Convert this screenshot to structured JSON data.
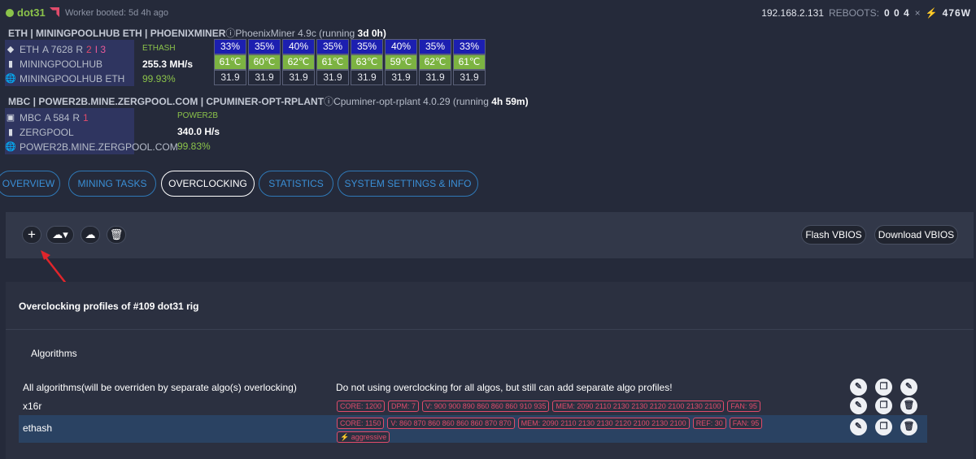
{
  "header": {
    "rig_name": "dot31",
    "booted": "Worker booted: 5d 4h ago",
    "ip": "192.168.2.131",
    "reboots_label": "REBOOTS:",
    "reboots_value": "0 0 4",
    "separator": "×",
    "power_icon": "⚡",
    "power": "476W"
  },
  "miners": [
    {
      "title": "ETH | MININGPOOLHUB ETH | PHOENIXMINER",
      "software": "PhoenixMiner",
      "version": "4.9c",
      "running_label": "(running",
      "uptime": "3d 0h)",
      "coin": "ETH",
      "accepted": "A 7628",
      "rejected_label": "R",
      "rejected": "2",
      "invalid": "I 3",
      "pool": "MININGPOOLHUB",
      "server": "MININGPOOLHUB ETH",
      "algo": "ETHASH",
      "hashrate": "255.3 MH/s",
      "share": "99.93%"
    },
    {
      "title": "MBC | POWER2B.MINE.ZERGPOOL.COM | CPUMINER-OPT-RPLANT",
      "software": "Cpuminer-opt-rplant",
      "version": "4.0.29",
      "running_label": "(running",
      "uptime": "4h 59m)",
      "coin": "MBC",
      "accepted": "A 584",
      "rejected_label": "R",
      "rejected": "1",
      "pool": "ZERGPOOL",
      "server": "POWER2B.MINE.ZERGPOOL.COM",
      "algo": "POWER2B",
      "hashrate": "340.0 H/s",
      "share": "99.83%"
    }
  ],
  "gpus": {
    "fans": [
      "33%",
      "35%",
      "40%",
      "35%",
      "35%",
      "40%",
      "35%",
      "33%"
    ],
    "temps": [
      "61℃",
      "60℃",
      "62℃",
      "61℃",
      "63℃",
      "59℃",
      "62℃",
      "61℃"
    ],
    "power": [
      "31.9",
      "31.9",
      "31.9",
      "31.9",
      "31.9",
      "31.9",
      "31.9",
      "31.9"
    ]
  },
  "tabs": [
    "OVERVIEW",
    "MINING TASKS",
    "OVERCLOCKING",
    "STATISTICS",
    "SYSTEM SETTINGS & INFO"
  ],
  "active_tab": "OVERCLOCKING",
  "toolbar": {
    "flash_label": "Flash VBIOS",
    "download_label": "Download VBIOS"
  },
  "profiles": {
    "title": "Overclocking profiles of #109 dot31 rig",
    "section": "Algorithms",
    "rows": [
      {
        "name": "All algorithms(will be overriden by separate algo(s) overlocking)",
        "desc": "Do not using overclocking for all algos, but still can add separate algo profiles!",
        "tags": []
      },
      {
        "name": "x16r",
        "desc": "",
        "tags": [
          "CORE: 1200",
          "DPM: 7",
          "V: 900 900 890 860 860 860 910 935",
          "MEM: 2090 2110 2130 2130 2120 2100 2130 2100",
          "FAN: 95"
        ]
      },
      {
        "name": "ethash",
        "desc": "",
        "tags": [
          "CORE: 1150",
          "V: 860 870 860 860 860 860 870 870",
          "MEM: 2090 2110 2130 2130 2120 2100 2130 2100",
          "REF: 30",
          "FAN: 95",
          "⚡ aggressive"
        ]
      }
    ]
  },
  "colors": {
    "background": "#252a3a",
    "accent_blue": "#3a8fd6",
    "ok_green": "#8bc34a",
    "tag_red": "#e04b6b",
    "fan_blue": "#1c1fb0",
    "temp_green": "#7cb342"
  }
}
